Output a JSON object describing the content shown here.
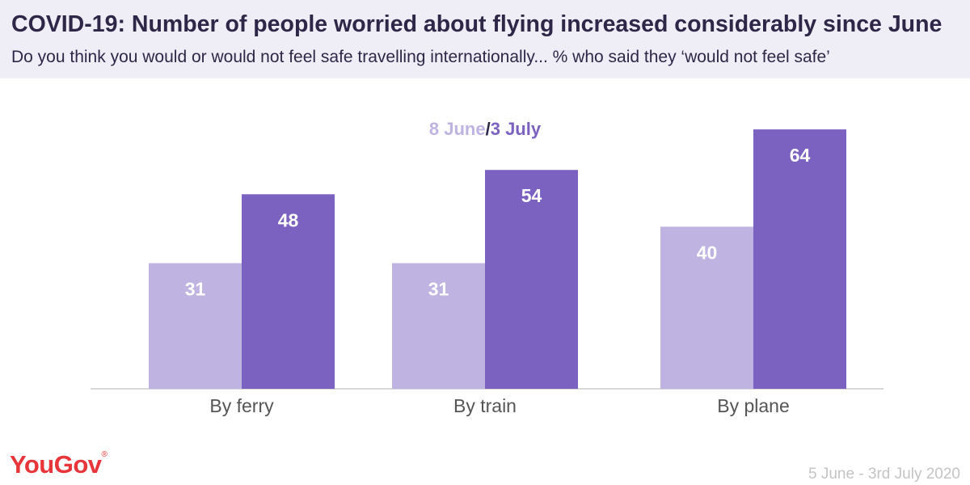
{
  "title": "COVID-19: Number of people worried about flying increased considerably since June",
  "subtitle": "Do you think you would or would not feel safe travelling internationally... % who said they ‘would not feel safe’",
  "legend": {
    "separator": "/"
  },
  "chart_data": {
    "type": "bar",
    "categories": [
      "By ferry",
      "By train",
      "By plane"
    ],
    "series": [
      {
        "name": "8 June",
        "values": [
          31,
          31,
          40
        ],
        "color": "#bfb3e1"
      },
      {
        "name": "3 July",
        "values": [
          48,
          54,
          64
        ],
        "color": "#7b62c0"
      }
    ],
    "ylim": [
      0,
      70
    ],
    "grid": false,
    "legend_position": "top-center",
    "data_label_color": "#ffffff",
    "baseline_color": "#cccccc",
    "category_label_color": "#555555"
  },
  "branding": {
    "logo": "YouGov",
    "logo_mark": "®",
    "logo_color": "#e8353a"
  },
  "date_range": "5 June - 3rd July 2020"
}
